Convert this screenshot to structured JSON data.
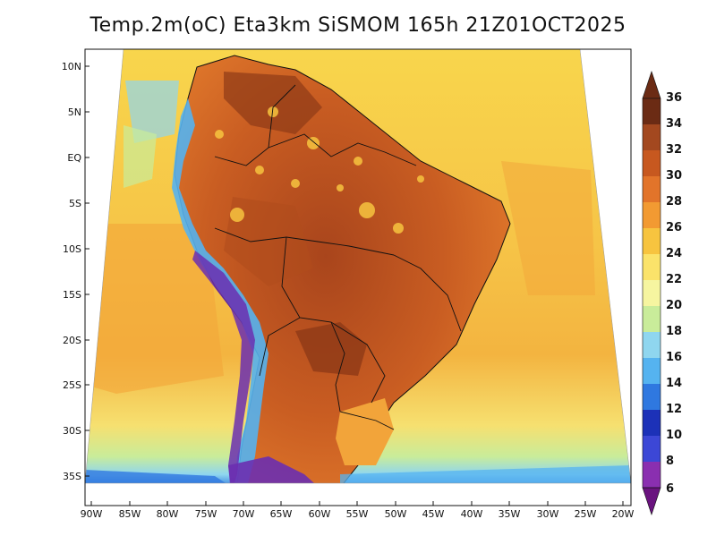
{
  "title": "Temp.2m(oC) Eta3km SiSMOM 165h 21Z01OCT2025",
  "lat_labels": [
    "10N",
    "5N",
    "EQ",
    "5S",
    "10S",
    "15S",
    "20S",
    "25S",
    "30S",
    "35S"
  ],
  "lon_labels": [
    "90W",
    "85W",
    "80W",
    "75W",
    "70W",
    "65W",
    "60W",
    "55W",
    "50W",
    "45W",
    "40W",
    "35W",
    "30W",
    "25W",
    "20W"
  ],
  "colorbar": {
    "ticks": [
      "36",
      "34",
      "32",
      "30",
      "28",
      "26",
      "24",
      "22",
      "20",
      "18",
      "16",
      "14",
      "12",
      "10",
      "8",
      "6"
    ],
    "colors_top_to_bottom": [
      "#6b2b14",
      "#a3481f",
      "#c7581f",
      "#e2742a",
      "#f29a32",
      "#f7c43f",
      "#fbe36a",
      "#f6f5a0",
      "#c9ec9a",
      "#8fd6ef",
      "#55b3f0",
      "#2f78e0",
      "#1c31b8",
      "#3c47d6",
      "#6b3cc8",
      "#8a2fb0",
      "#6a137f"
    ]
  },
  "map_colors": {
    "ocean_north": "#f7d04a",
    "ocean_band_28": "#f3a83a",
    "ocean_south_cool": "#55b3f0",
    "land_hot": "#c7581f",
    "land_hottest": "#8e3a17",
    "andes_cold": "#6b2fb0"
  }
}
